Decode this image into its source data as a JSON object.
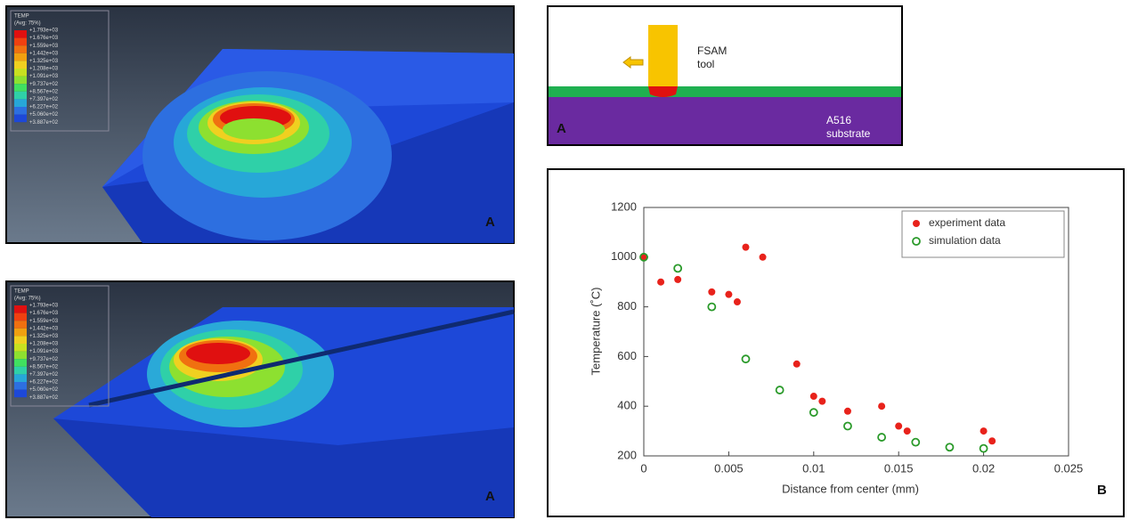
{
  "contour_plot": {
    "title": "TEMP",
    "subtitle": "(Avg: 75%)",
    "levels": [
      "+1.793e+03",
      "+1.676e+03",
      "+1.559e+03",
      "+1.442e+03",
      "+1.325e+03",
      "+1.208e+03",
      "+1.091e+03",
      "+9.737e+02",
      "+8.567e+02",
      "+7.397e+02",
      "+6.227e+02",
      "+5.060e+02",
      "+3.887e+02"
    ]
  },
  "panel_labels": {
    "top_left": "A",
    "bottom_left": "A",
    "schematic": "A",
    "chart": "B"
  },
  "schematic": {
    "tool_label": [
      "FSAM",
      "tool"
    ],
    "substrate_label": [
      "A516",
      "substrate"
    ]
  },
  "chart_data": {
    "type": "scatter",
    "x_label": "Distance from center (mm)",
    "y_label": "Temperature (˚C)",
    "xlim": [
      0,
      0.025
    ],
    "xticks": [
      0,
      0.005,
      0.01,
      0.015,
      0.02,
      0.025
    ],
    "ylim": [
      200,
      1200
    ],
    "yticks": [
      200,
      400,
      600,
      800,
      1000,
      1200
    ],
    "grid": false,
    "legend": "upper-right",
    "series": [
      {
        "name": "experiment data",
        "color": "#e8221b",
        "filled": true,
        "x": [
          0,
          0.001,
          0.002,
          0.004,
          0.005,
          0.0055,
          0.006,
          0.007,
          0.009,
          0.01,
          0.0105,
          0.012,
          0.014,
          0.015,
          0.0155,
          0.02,
          0.0205
        ],
        "values": [
          1000,
          900,
          910,
          860,
          850,
          820,
          1040,
          1000,
          570,
          440,
          420,
          380,
          400,
          320,
          300,
          300,
          260
        ]
      },
      {
        "name": "simulation data",
        "color": "#2a9a2a",
        "filled": false,
        "x": [
          0,
          0.002,
          0.004,
          0.006,
          0.008,
          0.01,
          0.012,
          0.014,
          0.016,
          0.018,
          0.02
        ],
        "values": [
          1000,
          955,
          800,
          590,
          465,
          375,
          320,
          275,
          255,
          235,
          230
        ]
      }
    ]
  }
}
